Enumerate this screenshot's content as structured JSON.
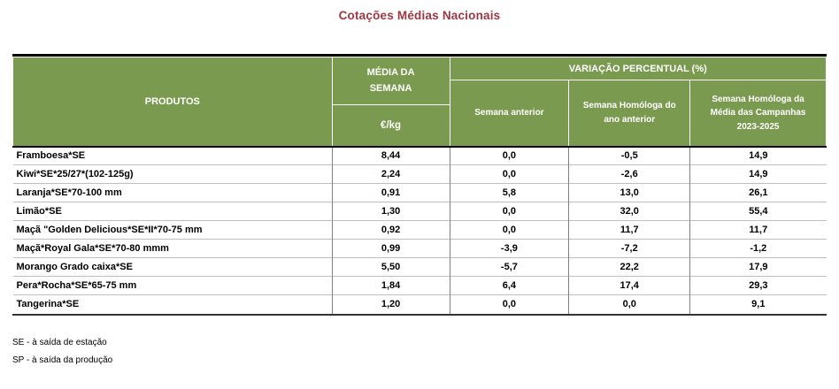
{
  "title": "Cotações Médias Nacionais",
  "colors": {
    "header_green": "#7A9A50",
    "title_maroon": "#9C3742"
  },
  "table": {
    "header": {
      "produtos": "PRODUTOS",
      "media_da_semana": "MÉDIA DA SEMANA",
      "unit": "€/kg",
      "variacao_percentual": "VARIAÇÃO PERCENTUAL (%)",
      "semana_anterior": "Semana anterior",
      "semana_homologa_ano": "Semana Homóloga do ano anterior",
      "semana_homologa_campanhas": "Semana Homóloga da Média das Campanhas 2023-2025"
    },
    "rows": [
      {
        "produto": "Framboesa*SE",
        "media": "8,44",
        "sa": "0,0",
        "sha": "-0,5",
        "shc": "14,9"
      },
      {
        "produto": "Kiwi*SE*25/27*(102-125g)",
        "media": "2,24",
        "sa": "0,0",
        "sha": "-2,6",
        "shc": "14,9"
      },
      {
        "produto": "Laranja*SE*70-100 mm",
        "media": "0,91",
        "sa": "5,8",
        "sha": "13,0",
        "shc": "26,1"
      },
      {
        "produto": "Limão*SE",
        "media": "1,30",
        "sa": "0,0",
        "sha": "32,0",
        "shc": "55,4"
      },
      {
        "produto": "Maçã \"Golden Delicious*SE*II*70-75 mm",
        "media": "0,92",
        "sa": "0,0",
        "sha": "11,7",
        "shc": "11,7"
      },
      {
        "produto": "Maçã*Royal Gala*SE*70-80 mmm",
        "media": "0,99",
        "sa": "-3,9",
        "sha": "-7,2",
        "shc": "-1,2"
      },
      {
        "produto": "Morango Grado caixa*SE",
        "media": "5,50",
        "sa": "-5,7",
        "sha": "22,2",
        "shc": "17,9"
      },
      {
        "produto": "Pera*Rocha*SE*65-75 mm",
        "media": "1,84",
        "sa": "6,4",
        "sha": "17,4",
        "shc": "29,3"
      },
      {
        "produto": "Tangerina*SE",
        "media": "1,20",
        "sa": "0,0",
        "sha": "0,0",
        "shc": "9,1"
      }
    ]
  },
  "footnotes": {
    "se": "SE - à saída de estação",
    "sp": "SP - à saída da produção"
  }
}
